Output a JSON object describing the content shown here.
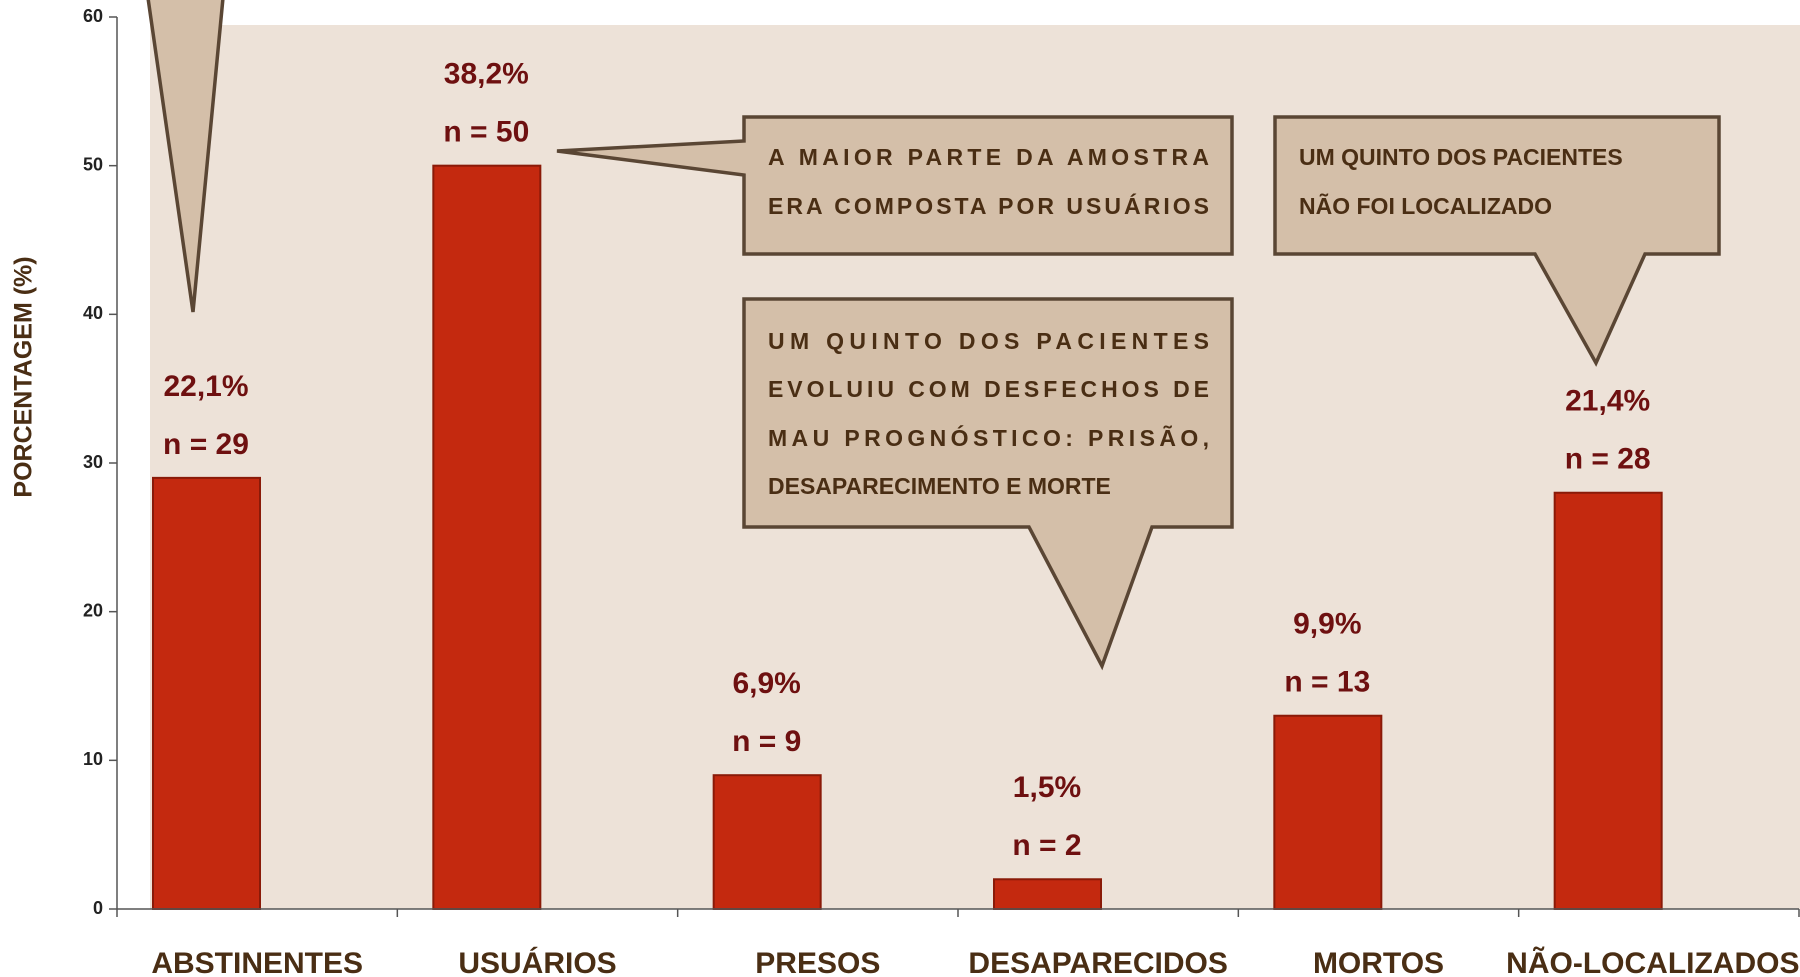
{
  "chart_data": {
    "type": "bar",
    "y_label": "PORCENTAGEM (%)",
    "categories": [
      "ABSTINENTES",
      "USUÁRIOS",
      "PRESOS",
      "DESAPARECIDOS",
      "MORTOS",
      "NÃO-LOCALIZADOS"
    ],
    "values": [
      29,
      50,
      9,
      2,
      13,
      28
    ],
    "value_labels": [
      "n = 29",
      "n = 50",
      "n = 9",
      "n = 2",
      "n = 13",
      "n = 28"
    ],
    "percent_labels": [
      "22,1%",
      "38,2%",
      "6,9%",
      "1,5%",
      "9,9%",
      "21,4%"
    ],
    "color": "#c4290f",
    "ylim": [
      0,
      60
    ],
    "yticks": [
      0,
      10,
      20,
      30,
      40,
      50,
      60
    ],
    "annotations": [
      {
        "lines": [
          "A MAIOR PARTE DA AMOSTRA",
          "ERA COMPOSTA POR USUÁRIOS"
        ]
      },
      {
        "lines": [
          "UM QUINTO DOS PACIENTES",
          "NÃO FOI LOCALIZADO"
        ]
      },
      {
        "lines": [
          "UM QUINTO DOS PACIENTES",
          "EVOLUIU COM DESFECHOS DE",
          "MAU PROGNÓSTICO: PRISÃO,",
          "DESAPARECIMENTO E MORTE"
        ]
      }
    ]
  }
}
